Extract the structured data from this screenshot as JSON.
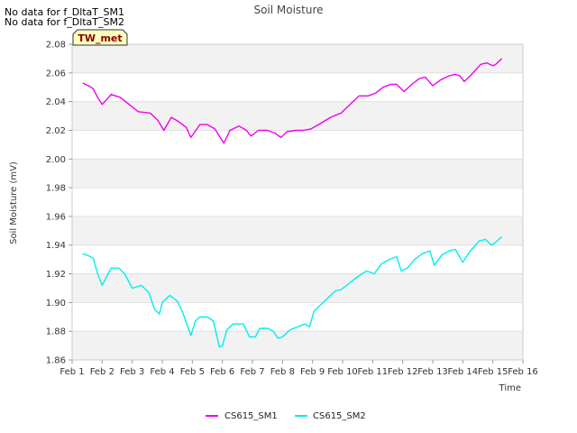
{
  "notices": [
    "No data for f_DltaT_SM1",
    "No data for f_DltaT_SM2"
  ],
  "badge": "TW_met",
  "colors": {
    "sm1": "#ee00ee",
    "sm2": "#00eeee",
    "band": "#f2f2f2",
    "badge_fill": "#ffffc0",
    "axis": "#cccccc"
  },
  "chart_data": {
    "type": "line",
    "title": "Soil Moisture",
    "xlabel": "Time",
    "ylabel": "Soil Moisture (mV)",
    "xlim": [
      1,
      16
    ],
    "ylim": [
      1.86,
      2.08
    ],
    "xticks": [
      1,
      2,
      3,
      4,
      5,
      6,
      7,
      8,
      9,
      10,
      11,
      12,
      13,
      14,
      15,
      16
    ],
    "xtick_labels": [
      "Feb 1",
      "Feb 2",
      "Feb 3",
      "Feb 4",
      "Feb 5",
      "Feb 6",
      "Feb 7",
      "Feb 8",
      "Feb 9",
      "Feb 10",
      "Feb 11",
      "Feb 12",
      "Feb 13",
      "Feb 14",
      "Feb 15",
      "Feb 16"
    ],
    "yticks": [
      1.86,
      1.88,
      1.9,
      1.92,
      1.94,
      1.96,
      1.98,
      2.0,
      2.02,
      2.04,
      2.06,
      2.08
    ],
    "ytick_labels": [
      "1.86",
      "1.88",
      "1.90",
      "1.92",
      "1.94",
      "1.96",
      "1.98",
      "2.00",
      "2.02",
      "2.04",
      "2.06",
      "2.08"
    ],
    "legend": "bottom-center",
    "series": [
      {
        "name": "CS615_SM1",
        "color": "#ee00ee",
        "x": [
          1.35,
          1.55,
          1.7,
          1.85,
          2.0,
          2.3,
          2.6,
          2.9,
          3.2,
          3.6,
          3.85,
          4.05,
          4.3,
          4.55,
          4.8,
          4.95,
          5.25,
          5.5,
          5.75,
          6.05,
          6.25,
          6.55,
          6.8,
          6.95,
          7.2,
          7.5,
          7.75,
          7.95,
          8.15,
          8.45,
          8.7,
          8.95,
          9.2,
          9.6,
          9.95,
          10.25,
          10.55,
          10.85,
          11.1,
          11.35,
          11.6,
          11.8,
          12.05,
          12.3,
          12.55,
          12.75,
          13.0,
          13.25,
          13.55,
          13.75,
          13.9,
          14.05,
          14.25,
          14.6,
          14.8,
          15.0,
          15.1,
          15.3
        ],
        "values": [
          2.053,
          2.051,
          2.049,
          2.043,
          2.038,
          2.045,
          2.043,
          2.038,
          2.033,
          2.032,
          2.027,
          2.02,
          2.029,
          2.026,
          2.022,
          2.015,
          2.024,
          2.024,
          2.021,
          2.011,
          2.02,
          2.023,
          2.02,
          2.016,
          2.02,
          2.02,
          2.018,
          2.015,
          2.019,
          2.02,
          2.02,
          2.021,
          2.024,
          2.029,
          2.032,
          2.038,
          2.044,
          2.044,
          2.046,
          2.05,
          2.052,
          2.052,
          2.047,
          2.052,
          2.056,
          2.057,
          2.051,
          2.055,
          2.058,
          2.059,
          2.058,
          2.054,
          2.058,
          2.066,
          2.067,
          2.065,
          2.066,
          2.07
        ]
      },
      {
        "name": "CS615_SM2",
        "color": "#00eeee",
        "x": [
          1.35,
          1.5,
          1.7,
          1.85,
          2.0,
          2.3,
          2.55,
          2.75,
          3.0,
          3.3,
          3.55,
          3.75,
          3.9,
          4.0,
          4.25,
          4.5,
          4.7,
          4.95,
          5.1,
          5.25,
          5.5,
          5.7,
          5.9,
          6.0,
          6.15,
          6.35,
          6.7,
          6.9,
          7.1,
          7.25,
          7.5,
          7.7,
          7.85,
          8.0,
          8.25,
          8.5,
          8.75,
          8.9,
          9.05,
          9.2,
          9.45,
          9.75,
          9.95,
          10.2,
          10.5,
          10.8,
          11.05,
          11.3,
          11.55,
          11.8,
          11.95,
          12.15,
          12.4,
          12.65,
          12.9,
          13.05,
          13.3,
          13.55,
          13.75,
          14.0,
          14.25,
          14.55,
          14.75,
          14.95,
          15.1,
          15.3
        ],
        "values": [
          1.934,
          1.933,
          1.931,
          1.92,
          1.912,
          1.924,
          1.924,
          1.92,
          1.91,
          1.912,
          1.907,
          1.895,
          1.892,
          1.9,
          1.905,
          1.901,
          1.892,
          1.877,
          1.887,
          1.89,
          1.89,
          1.887,
          1.869,
          1.87,
          1.881,
          1.885,
          1.885,
          1.876,
          1.876,
          1.882,
          1.882,
          1.88,
          1.875,
          1.876,
          1.881,
          1.883,
          1.885,
          1.883,
          1.894,
          1.897,
          1.902,
          1.908,
          1.909,
          1.913,
          1.918,
          1.922,
          1.92,
          1.927,
          1.93,
          1.932,
          1.922,
          1.924,
          1.93,
          1.934,
          1.936,
          1.926,
          1.933,
          1.936,
          1.937,
          1.928,
          1.936,
          1.943,
          1.944,
          1.94,
          1.942,
          1.946
        ]
      }
    ]
  }
}
